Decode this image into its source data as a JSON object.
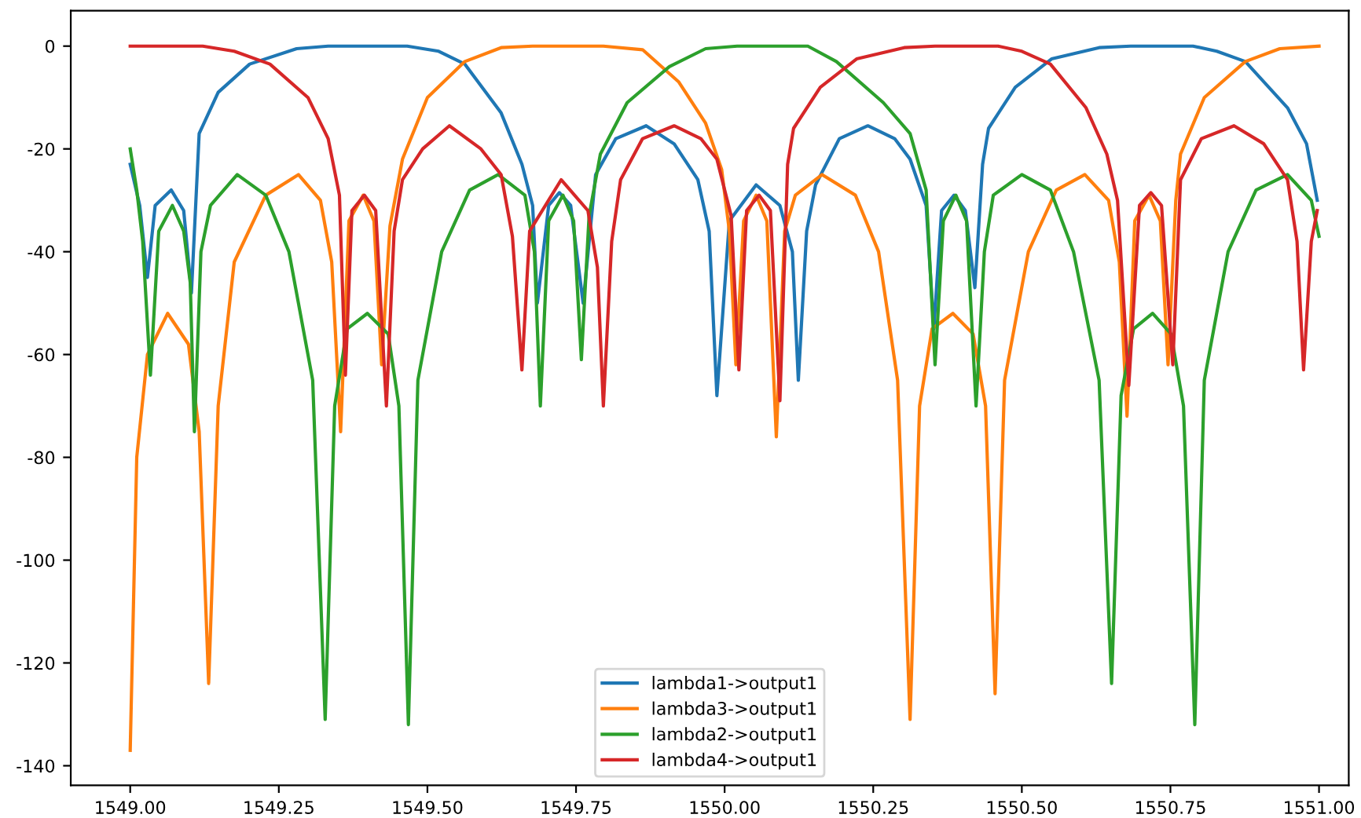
{
  "chart_data": {
    "type": "line",
    "xlim": [
      1548.9,
      1551.05
    ],
    "ylim": [
      -143.8,
      6.9
    ],
    "xticks": [
      {
        "value": 1549.0,
        "label": "1549.00"
      },
      {
        "value": 1549.25,
        "label": "1549.25"
      },
      {
        "value": 1549.5,
        "label": "1549.50"
      },
      {
        "value": 1549.75,
        "label": "1549.75"
      },
      {
        "value": 1550.0,
        "label": "1550.00"
      },
      {
        "value": 1550.25,
        "label": "1550.25"
      },
      {
        "value": 1550.5,
        "label": "1550.50"
      },
      {
        "value": 1550.75,
        "label": "1550.75"
      },
      {
        "value": 1551.0,
        "label": "1551.00"
      }
    ],
    "yticks": [
      0,
      -20,
      -40,
      -60,
      -80,
      -100,
      -120,
      -140
    ],
    "grid": false,
    "legend": "bottom",
    "marker": "none",
    "line_style": "solid",
    "series": [
      {
        "name": "lambda1->output1",
        "color": "#1f77b4",
        "x": [
          1549.0,
          1549.016,
          1549.029,
          1549.042,
          1549.069,
          1549.09,
          1549.103,
          1549.116,
          1549.148,
          1549.201,
          1549.28,
          1549.333,
          1549.466,
          1549.519,
          1549.563,
          1549.624,
          1549.659,
          1549.677,
          1549.685,
          1549.704,
          1549.722,
          1549.741,
          1549.762,
          1549.783,
          1549.817,
          1549.868,
          1549.915,
          1549.955,
          1549.974,
          1549.987,
          1550.008,
          1550.053,
          1550.093,
          1550.114,
          1550.124,
          1550.138,
          1550.153,
          1550.193,
          1550.241,
          1550.286,
          1550.312,
          1550.339,
          1550.352,
          1550.365,
          1550.386,
          1550.405,
          1550.421,
          1550.434,
          1550.444,
          1550.489,
          1550.55,
          1550.63,
          1550.683,
          1550.788,
          1550.828,
          1550.876,
          1550.947,
          1550.979,
          1550.997
        ],
        "values": [
          -23,
          -31,
          -45,
          -31,
          -28,
          -32,
          -48,
          -17,
          -9,
          -3.5,
          -0.5,
          0,
          0,
          -1,
          -3.5,
          -13,
          -23,
          -31,
          -50,
          -31,
          -28.5,
          -31,
          -50,
          -25,
          -18,
          -15.5,
          -19,
          -26,
          -36,
          -68,
          -34,
          -27,
          -31,
          -40,
          -65,
          -36,
          -27,
          -18,
          -15.5,
          -18,
          -22,
          -31,
          -55,
          -32,
          -29,
          -32,
          -47,
          -23,
          -16,
          -8,
          -2.5,
          -0.3,
          0,
          0,
          -1,
          -3,
          -12,
          -19,
          -30
        ]
      },
      {
        "name": "lambda3->output1",
        "color": "#ff7f0e",
        "x": [
          1549.0,
          1549.011,
          1549.029,
          1549.063,
          1549.098,
          1549.116,
          1549.132,
          1549.148,
          1549.175,
          1549.228,
          1549.283,
          1549.32,
          1549.339,
          1549.354,
          1549.368,
          1549.392,
          1549.41,
          1549.423,
          1549.437,
          1549.458,
          1549.5,
          1549.563,
          1549.624,
          1549.677,
          1549.796,
          1549.862,
          1549.923,
          1549.968,
          1549.995,
          1550.008,
          1550.019,
          1550.032,
          1550.053,
          1550.071,
          1550.087,
          1550.101,
          1550.119,
          1550.164,
          1550.22,
          1550.259,
          1550.291,
          1550.312,
          1550.328,
          1550.349,
          1550.384,
          1550.418,
          1550.439,
          1550.455,
          1550.471,
          1550.511,
          1550.558,
          1550.606,
          1550.646,
          1550.664,
          1550.677,
          1550.69,
          1550.714,
          1550.733,
          1550.746,
          1550.759,
          1550.767,
          1550.807,
          1550.876,
          1550.934,
          1551.0
        ],
        "values": [
          -137,
          -80,
          -60,
          -52,
          -58,
          -75,
          -124,
          -70,
          -42,
          -29,
          -25,
          -30,
          -42,
          -75,
          -34,
          -29,
          -34,
          -62,
          -35,
          -22,
          -10,
          -3,
          -0.3,
          0,
          0,
          -0.7,
          -7,
          -15,
          -24,
          -36,
          -62,
          -34,
          -29,
          -34,
          -76,
          -36,
          -29,
          -25,
          -29,
          -40,
          -65,
          -131,
          -70,
          -55,
          -52,
          -56,
          -70,
          -126,
          -65,
          -40,
          -28,
          -25,
          -30,
          -42,
          -72,
          -34,
          -29,
          -34,
          -62,
          -30,
          -21,
          -10,
          -3,
          -0.5,
          0
        ]
      },
      {
        "name": "lambda2->output1",
        "color": "#2ca02c",
        "x": [
          1549.0,
          1549.011,
          1549.021,
          1549.034,
          1549.048,
          1549.071,
          1549.09,
          1549.101,
          1549.108,
          1549.119,
          1549.135,
          1549.18,
          1549.228,
          1549.267,
          1549.307,
          1549.328,
          1549.344,
          1549.365,
          1549.399,
          1549.434,
          1549.452,
          1549.468,
          1549.484,
          1549.524,
          1549.571,
          1549.619,
          1549.664,
          1549.68,
          1549.69,
          1549.704,
          1549.728,
          1549.746,
          1549.759,
          1549.772,
          1549.791,
          1549.836,
          1549.907,
          1549.968,
          1550.021,
          1550.14,
          1550.188,
          1550.267,
          1550.312,
          1550.339,
          1550.354,
          1550.368,
          1550.389,
          1550.407,
          1550.423,
          1550.437,
          1550.452,
          1550.5,
          1550.548,
          1550.587,
          1550.63,
          1550.651,
          1550.667,
          1550.688,
          1550.72,
          1550.751,
          1550.772,
          1550.791,
          1550.807,
          1550.847,
          1550.894,
          1550.947,
          1550.987,
          1551.0
        ],
        "values": [
          -20,
          -28,
          -38,
          -64,
          -36,
          -31,
          -36,
          -46,
          -75,
          -40,
          -31,
          -25,
          -29,
          -40,
          -65,
          -131,
          -70,
          -55,
          -52,
          -56,
          -70,
          -132,
          -65,
          -40,
          -28,
          -25,
          -29,
          -40,
          -70,
          -34,
          -29,
          -34,
          -61,
          -33,
          -21,
          -11,
          -4,
          -0.5,
          0,
          0,
          -3,
          -11,
          -17,
          -28,
          -62,
          -34,
          -29,
          -34,
          -70,
          -40,
          -29,
          -25,
          -28,
          -40,
          -65,
          -124,
          -68,
          -55,
          -52,
          -56,
          -70,
          -132,
          -65,
          -40,
          -28,
          -25,
          -30,
          -37
        ]
      },
      {
        "name": "lambda4->output1",
        "color": "#d62728",
        "x": [
          1549.0,
          1549.122,
          1549.175,
          1549.235,
          1549.299,
          1549.333,
          1549.352,
          1549.362,
          1549.373,
          1549.394,
          1549.413,
          1549.431,
          1549.444,
          1549.458,
          1549.492,
          1549.537,
          1549.59,
          1549.624,
          1549.643,
          1549.659,
          1549.672,
          1549.725,
          1549.77,
          1549.786,
          1549.796,
          1549.81,
          1549.825,
          1549.862,
          1549.915,
          1549.96,
          1549.987,
          1550.011,
          1550.024,
          1550.037,
          1550.058,
          1550.077,
          1550.093,
          1550.106,
          1550.116,
          1550.161,
          1550.222,
          1550.302,
          1550.354,
          1550.46,
          1550.5,
          1550.548,
          1550.608,
          1550.643,
          1550.661,
          1550.68,
          1550.698,
          1550.717,
          1550.735,
          1550.754,
          1550.767,
          1550.802,
          1550.857,
          1550.907,
          1550.947,
          1550.963,
          1550.974,
          1550.987,
          1550.997
        ],
        "values": [
          0,
          0,
          -1,
          -3.5,
          -10,
          -18,
          -29,
          -64,
          -32,
          -29,
          -32,
          -70,
          -36,
          -26,
          -20,
          -15.5,
          -20,
          -25,
          -37,
          -63,
          -36,
          -26,
          -32,
          -43,
          -70,
          -38,
          -26,
          -18,
          -15.5,
          -18,
          -22,
          -33,
          -63,
          -32,
          -29,
          -32,
          -69,
          -23,
          -16,
          -8,
          -2.5,
          -0.3,
          0,
          0,
          -1,
          -3.5,
          -12,
          -21,
          -30,
          -66,
          -31,
          -28.5,
          -31,
          -62,
          -26,
          -18,
          -15.5,
          -19,
          -26,
          -38,
          -63,
          -38,
          -32
        ]
      }
    ]
  }
}
